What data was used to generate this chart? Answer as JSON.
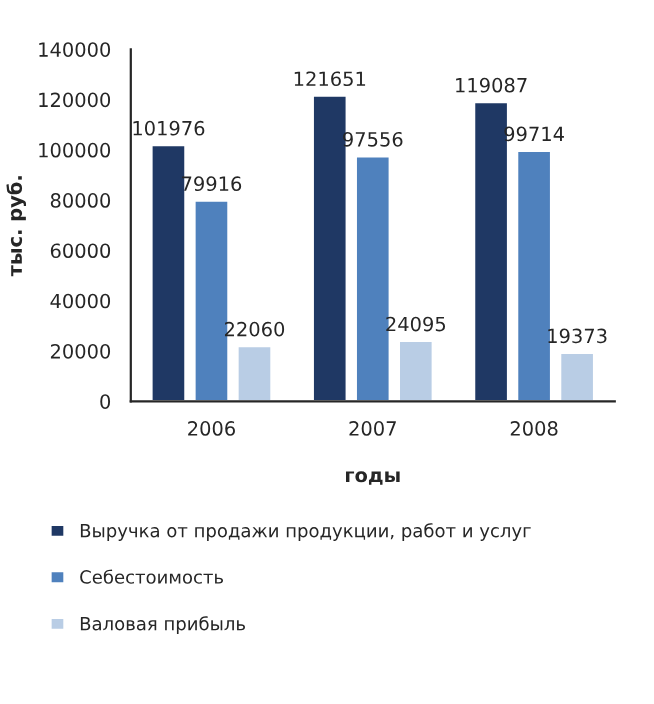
{
  "chart_data": {
    "type": "bar",
    "categories": [
      "2006",
      "2007",
      "2008"
    ],
    "series": [
      {
        "name": "Выручка от продажи продукции, работ и услуг",
        "color": "#1f3864",
        "values": [
          101976,
          121651,
          119087
        ]
      },
      {
        "name": "Себестоимость",
        "color": "#4f81bd",
        "values": [
          79916,
          97556,
          99714
        ]
      },
      {
        "name": "Валовая прибыль",
        "color": "#b9cde5",
        "values": [
          22060,
          24095,
          19373
        ]
      }
    ],
    "xlabel": "годы",
    "ylabel": "тыс. руб.",
    "ylim": [
      0,
      140000
    ],
    "yticks": [
      0,
      20000,
      40000,
      60000,
      80000,
      100000,
      120000,
      140000
    ],
    "data_labels": true,
    "grid": false,
    "legend": "bottom"
  }
}
